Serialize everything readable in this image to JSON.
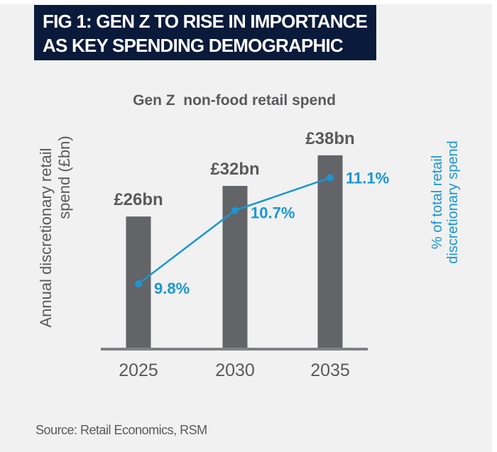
{
  "figure_title": [
    "FIG 1: GEN Z TO RISE IN IMPORTANCE",
    "AS KEY SPENDING DEMOGRAPHIC"
  ],
  "source": "Source: Retail Economics, RSM",
  "colors": {
    "bar": "#626468",
    "line": "#1a96d4",
    "title_bg": "#0a1a3a",
    "background": "#f0f1f0",
    "text": "#5a5a5c"
  },
  "chart_data": {
    "type": "bar+line",
    "title": "Gen Z  non-food retail spend",
    "categories": [
      "2025",
      "2030",
      "2035"
    ],
    "ylabel": [
      "Annual discretionary retail",
      "spend (£bn)"
    ],
    "y2label": [
      "% of total retail",
      "discretionary spend"
    ],
    "ylim": [
      0,
      48
    ],
    "y2lim": [
      9.0,
      12.0
    ],
    "series": [
      {
        "type": "bar",
        "values": [
          26,
          32,
          38
        ],
        "labels": [
          "£26bn",
          "£32bn",
          "£38bn"
        ]
      },
      {
        "type": "line",
        "axis": "secondary",
        "values": [
          9.8,
          10.7,
          11.1
        ],
        "labels": [
          "9.8%",
          "10.7%",
          "11.1%"
        ]
      }
    ],
    "grid": false
  }
}
